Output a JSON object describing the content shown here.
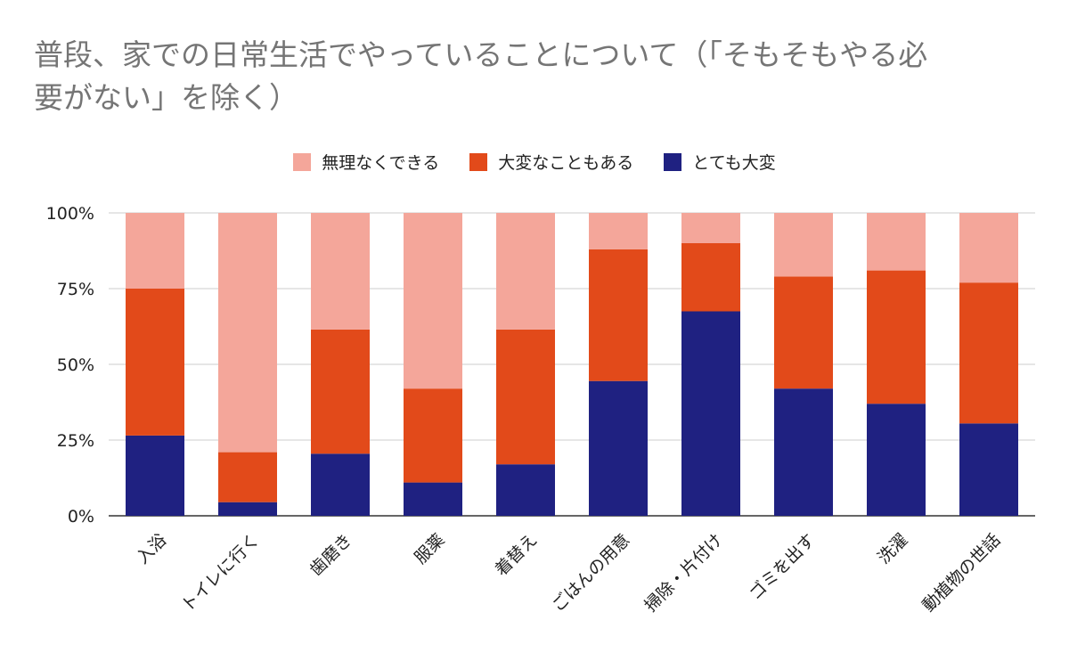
{
  "chart_data": {
    "type": "bar",
    "stacked": true,
    "title": "普段、家での日常生活でやっていることについて（「そもそもやる必要がない」を除く）",
    "title_lines": [
      "普段、家での日常生活でやっていることについて（「そもそもやる必",
      "要がない」を除く）"
    ],
    "xlabel": "",
    "ylabel": "",
    "ylim": [
      0,
      100
    ],
    "y_ticks": [
      "0%",
      "25%",
      "50%",
      "75%",
      "100%"
    ],
    "y_tick_values": [
      0,
      25,
      50,
      75,
      100
    ],
    "legend_position": "top",
    "grid": true,
    "categories": [
      "入浴",
      "トイレに行く",
      "歯磨き",
      "服薬",
      "着替え",
      "ごはんの用意",
      "掃除・片付け",
      "ゴミを出す",
      "洗濯",
      "動植物の世話"
    ],
    "series": [
      {
        "name": "とても大変",
        "color": "#1f2181",
        "values": [
          26.5,
          4.5,
          20.5,
          11,
          17,
          44.5,
          67.5,
          42,
          37,
          30.5
        ]
      },
      {
        "name": "大変なこともある",
        "color": "#e24a1a",
        "values": [
          48.5,
          16.5,
          41,
          31,
          44.5,
          43.5,
          22.5,
          37,
          44,
          46.5
        ]
      },
      {
        "name": "無理なくできる",
        "color": "#f4a69a",
        "values": [
          25,
          79,
          38.5,
          58,
          38.5,
          12,
          10,
          21,
          19,
          23
        ]
      }
    ],
    "legend_order": [
      "無理なくできる",
      "大変なこともある",
      "とても大変"
    ]
  }
}
